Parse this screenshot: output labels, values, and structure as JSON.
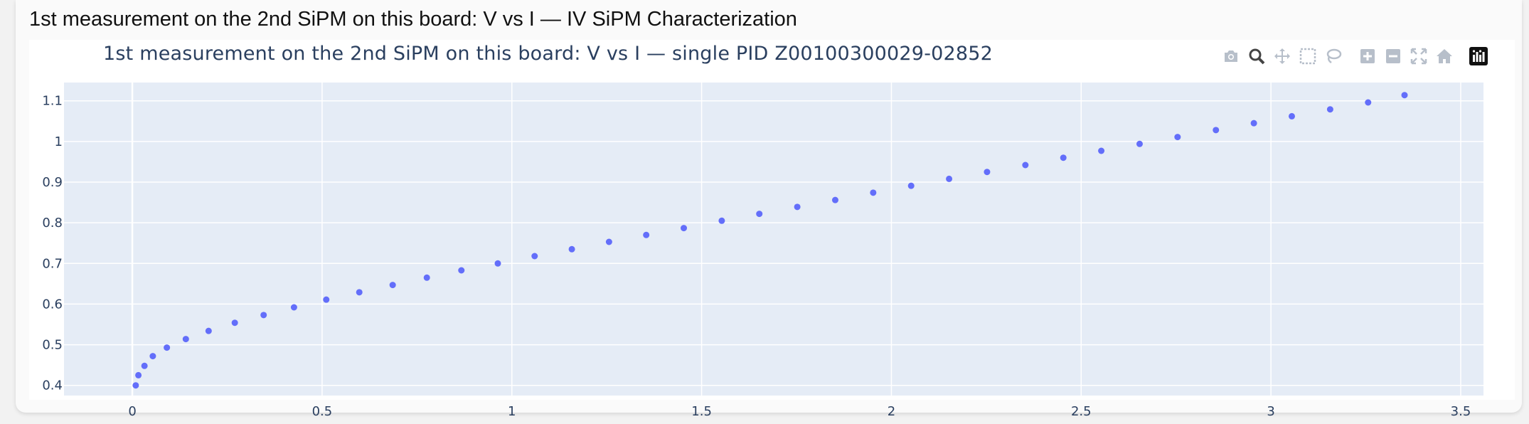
{
  "page": {
    "title": "1st measurement on the 2nd SiPM on this board: V vs I — IV SiPM Characterization"
  },
  "modebar": {
    "buttons": [
      {
        "icon": "camera-icon"
      },
      {
        "icon": "zoom-icon"
      },
      {
        "icon": "pan-icon"
      },
      {
        "icon": "box-select-icon"
      },
      {
        "icon": "lasso-select-icon"
      },
      {
        "icon": "zoom-in-icon"
      },
      {
        "icon": "zoom-out-icon"
      },
      {
        "icon": "autoscale-icon"
      },
      {
        "icon": "reset-axes-icon"
      },
      {
        "icon": "plotly-logo-icon"
      }
    ]
  },
  "chart_data": {
    "type": "scatter",
    "title": "1st measurement on the 2nd SiPM on this board: V vs I — single PID Z00100300029-02852",
    "xlabel": "",
    "ylabel": "",
    "xlim": [
      -0.18,
      3.56
    ],
    "ylim": [
      0.375,
      1.145
    ],
    "xticks": [
      0,
      0.5,
      1,
      1.5,
      2,
      2.5,
      3,
      3.5
    ],
    "xtick_labels": [
      "0",
      "0.5",
      "1",
      "1.5",
      "2",
      "2.5",
      "3",
      "3.5"
    ],
    "yticks": [
      0.4,
      0.5,
      0.6,
      0.7,
      0.8,
      0.9,
      1,
      1.1
    ],
    "ytick_labels": [
      "0.4",
      "0.5",
      "0.6",
      "0.7",
      "0.8",
      "0.9",
      "1",
      "1.1"
    ],
    "grid": true,
    "marker_color": "#636efa",
    "plot_bgcolor": "#e5ecf6",
    "series": [
      {
        "x": [
          0.009,
          0.016,
          0.032,
          0.054,
          0.091,
          0.141,
          0.201,
          0.27,
          0.346,
          0.426,
          0.511,
          0.598,
          0.686,
          0.776,
          0.867,
          0.963,
          1.06,
          1.158,
          1.256,
          1.354,
          1.453,
          1.553,
          1.652,
          1.752,
          1.852,
          1.952,
          2.052,
          2.152,
          2.252,
          2.353,
          2.453,
          2.553,
          2.654,
          2.754,
          2.855,
          2.955,
          3.055,
          3.156,
          3.256,
          3.352
        ],
        "y": [
          0.4,
          0.425,
          0.448,
          0.472,
          0.493,
          0.514,
          0.534,
          0.554,
          0.573,
          0.592,
          0.611,
          0.629,
          0.647,
          0.665,
          0.683,
          0.7,
          0.718,
          0.735,
          0.753,
          0.77,
          0.787,
          0.805,
          0.822,
          0.839,
          0.856,
          0.874,
          0.891,
          0.908,
          0.925,
          0.942,
          0.96,
          0.977,
          0.994,
          1.011,
          1.028,
          1.045,
          1.062,
          1.079,
          1.096,
          1.114
        ]
      }
    ]
  }
}
